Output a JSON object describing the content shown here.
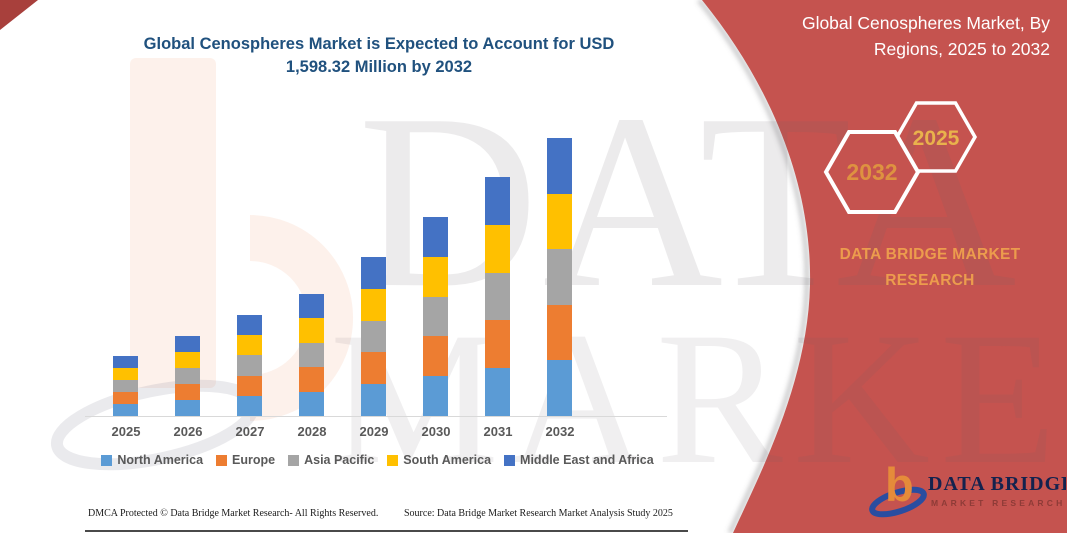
{
  "titles": {
    "left": "Global Cenospheres Market is Expected to Account for USD\n1,598.32 Million by 2032",
    "right": "Global Cenospheres Market, By\nRegions, 2025 to 2032"
  },
  "right_panel": {
    "hexagon_front_label": "2032",
    "hexagon_back_label": "2025",
    "brand_caption": "DATA BRIDGE MARKET\nRESEARCH"
  },
  "logo": {
    "monogram": "b",
    "name": "DATA BRIDGE",
    "tagline": "MARKET RESEARCH"
  },
  "watermark": {
    "line1": "DATA BRIDGE",
    "line2": "MARKET RESEARCH",
    "monogram": "b"
  },
  "footer": {
    "left": "DMCA Protected © Data Bridge Market Research-  All Rights Reserved.",
    "right": "Source: Data Bridge Market Research  Market Analysis Study 2025"
  },
  "colors": {
    "band_red": "#C5534F",
    "corner_red": "#A8403C",
    "title_blue": "#20517E",
    "brand_orange": "#EC9C4D",
    "hex_2032_text": "#DE9240",
    "hex_2025_text": "#E9B24C",
    "axis_text": "#595959",
    "axis_line": "#D9D9D9"
  },
  "chart_data": {
    "type": "bar",
    "stacked": true,
    "unit": "USD Million",
    "title": "Global Cenospheres Market is Expected to Account for USD 1,598.32 Million by 2032",
    "categories": [
      "2025",
      "2026",
      "2027",
      "2028",
      "2029",
      "2030",
      "2031",
      "2032"
    ],
    "series": [
      {
        "name": "North America",
        "color": "#5B9BD5",
        "values": [
          69.0,
          92.0,
          116.1,
          140.3,
          182.8,
          228.8,
          274.8,
          319.7
        ]
      },
      {
        "name": "Europe",
        "color": "#ED7D31",
        "values": [
          69.0,
          92.0,
          116.1,
          140.3,
          182.8,
          228.8,
          274.8,
          319.7
        ]
      },
      {
        "name": "Asia Pacific",
        "color": "#A5A5A5",
        "values": [
          69.0,
          92.0,
          116.1,
          140.3,
          182.8,
          228.8,
          274.8,
          319.7
        ]
      },
      {
        "name": "South America",
        "color": "#FFC000",
        "values": [
          69.0,
          92.0,
          116.1,
          140.3,
          182.8,
          228.8,
          274.8,
          319.7
        ]
      },
      {
        "name": "Middle East and Africa",
        "color": "#4472C4",
        "values": [
          69.0,
          92.0,
          116.1,
          140.3,
          182.8,
          228.8,
          274.8,
          319.7
        ]
      }
    ],
    "totals": [
      345.0,
      460.0,
      580.7,
      701.4,
      914.2,
      1144.1,
      1374.1,
      1598.32
    ],
    "ylim": [
      0,
      1650
    ],
    "grid": false,
    "legend_position": "bottom",
    "note": "No y-axis is shown; values estimated from bar pixel heights with the 2032 total anchored to USD 1,598.32 Million stated in the title. Each year's five regional segments are equal in height."
  }
}
